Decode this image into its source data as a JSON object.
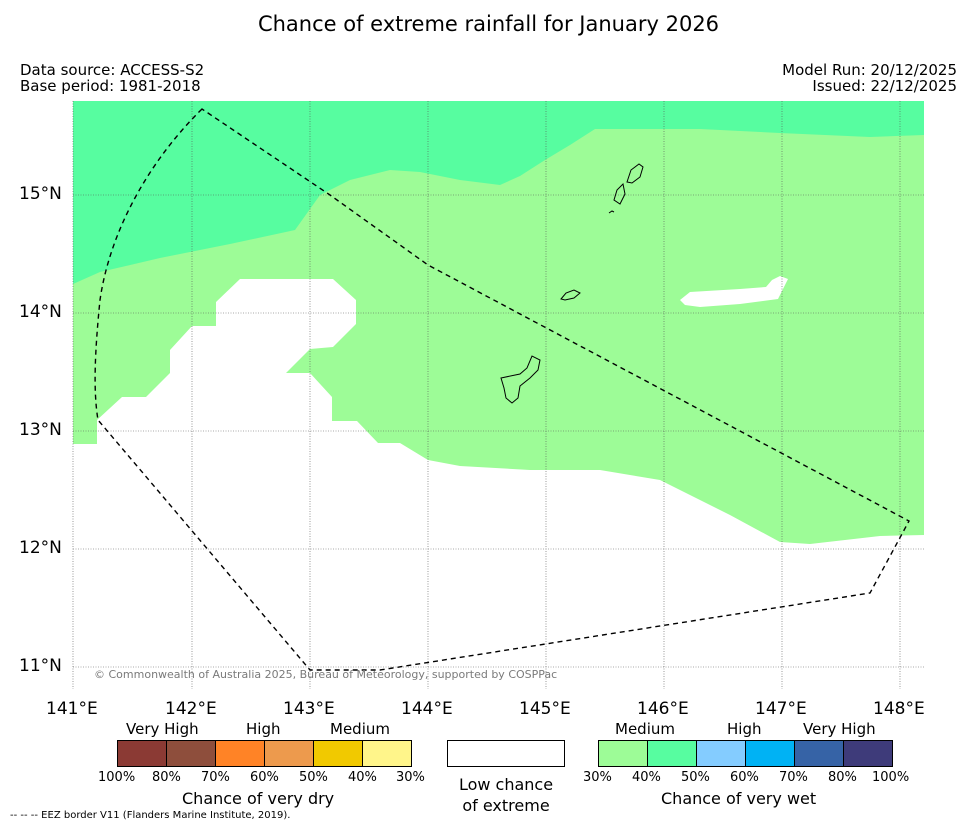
{
  "title": "Chance of extreme rainfall for January 2026",
  "meta": {
    "data_source": "Data source: ACCESS-S2",
    "base_period": "Base period: 1981-2018",
    "model_run": "Model Run: 20/12/2025",
    "issued": "Issued: 22/12/2025"
  },
  "axes": {
    "lon_ticks": [
      "141°E",
      "142°E",
      "143°E",
      "144°E",
      "145°E",
      "146°E",
      "147°E",
      "148°E"
    ],
    "lat_ticks": [
      "15°N",
      "14°N",
      "13°N",
      "12°N",
      "11°N"
    ]
  },
  "credit": "© Commonwealth of Australia 2025, Bureau of Meteorology, supported by COSPPac",
  "legend": {
    "dry": {
      "levels": [
        "Very High",
        "High",
        "Medium"
      ],
      "pcts": [
        "100%",
        "80%",
        "70%",
        "60%",
        "50%",
        "40%",
        "30%"
      ],
      "colors": [
        "#8b3a34",
        "#8e4e3c",
        "#ff8326",
        "#ed9a4d",
        "#f1c900",
        "#fff58a"
      ],
      "caption": "Chance of very dry"
    },
    "low": {
      "caption_line1": "Low chance",
      "caption_line2": "of extreme",
      "color": "#ffffff"
    },
    "wet": {
      "levels": [
        "Medium",
        "High",
        "Very High"
      ],
      "pcts": [
        "30%",
        "40%",
        "50%",
        "60%",
        "70%",
        "80%",
        "100%"
      ],
      "colors": [
        "#9dfc97",
        "#57fda0",
        "#84ccff",
        "#00b2f4",
        "#3663a6",
        "#3e3b7a"
      ],
      "caption": "Chance of very wet"
    }
  },
  "eez_note": "--  --  -- EEZ border V11 (Flanders Marine Institute, 2019)."
}
